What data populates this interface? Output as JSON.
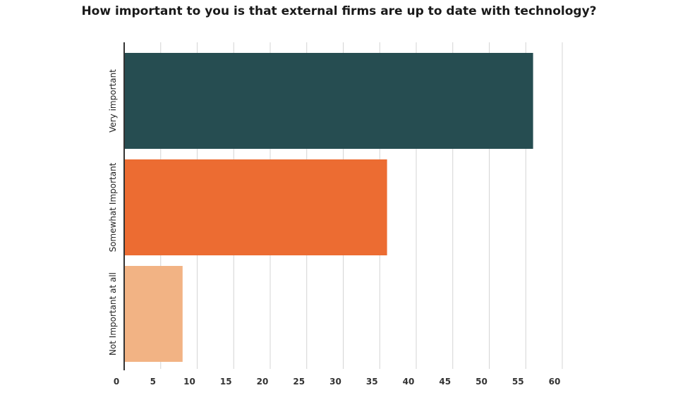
{
  "chart_data": {
    "type": "bar",
    "orientation": "horizontal",
    "title": "How important to you is that external firms are up to date with technology?",
    "categories": [
      "Very important",
      "Somewhat Important",
      "Not Important at all"
    ],
    "values": [
      56,
      36,
      8
    ],
    "colors": [
      "#264d51",
      "#ec6c32",
      "#f2b384"
    ],
    "xlim": [
      0,
      60
    ],
    "xticks": [
      0,
      5,
      10,
      15,
      20,
      25,
      30,
      35,
      40,
      45,
      50,
      55,
      60
    ],
    "grid": true,
    "legend": "none"
  }
}
